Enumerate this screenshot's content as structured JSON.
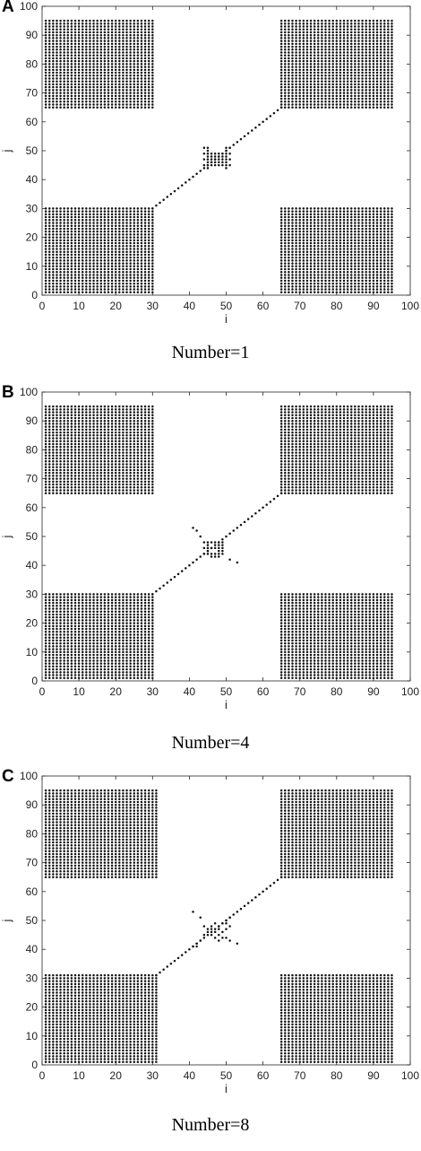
{
  "chart_data": [
    {
      "type": "scatter",
      "panel_label": "A",
      "caption": "Number=1",
      "xlabel": "i",
      "ylabel": "j",
      "xlim": [
        0,
        100
      ],
      "ylim": [
        0,
        100
      ],
      "xticks": [
        0,
        10,
        20,
        30,
        40,
        50,
        60,
        70,
        80,
        90,
        100
      ],
      "yticks": [
        0,
        10,
        20,
        30,
        40,
        50,
        60,
        70,
        80,
        90,
        100
      ],
      "grid": false,
      "blocks": [
        {
          "x": [
            1,
            30
          ],
          "y": [
            1,
            30
          ]
        },
        {
          "x": [
            65,
            95
          ],
          "y": [
            1,
            30
          ]
        },
        {
          "x": [
            1,
            30
          ],
          "y": [
            65,
            95
          ]
        },
        {
          "x": [
            65,
            95
          ],
          "y": [
            65,
            95
          ]
        }
      ],
      "diagonal": {
        "from": [
          30,
          30
        ],
        "to": [
          65,
          65
        ]
      },
      "center_points": [
        [
          45,
          44
        ],
        [
          50,
          44
        ],
        [
          44,
          45
        ],
        [
          45,
          45
        ],
        [
          46,
          45
        ],
        [
          47,
          45
        ],
        [
          48,
          45
        ],
        [
          49,
          45
        ],
        [
          50,
          45
        ],
        [
          51,
          45
        ],
        [
          45,
          46
        ],
        [
          46,
          46
        ],
        [
          47,
          46
        ],
        [
          48,
          46
        ],
        [
          49,
          46
        ],
        [
          50,
          46
        ],
        [
          44,
          47
        ],
        [
          45,
          47
        ],
        [
          46,
          47
        ],
        [
          47,
          47
        ],
        [
          48,
          47
        ],
        [
          49,
          47
        ],
        [
          50,
          47
        ],
        [
          51,
          47
        ],
        [
          45,
          48
        ],
        [
          46,
          48
        ],
        [
          47,
          48
        ],
        [
          48,
          48
        ],
        [
          49,
          48
        ],
        [
          50,
          48
        ],
        [
          44,
          49
        ],
        [
          45,
          49
        ],
        [
          46,
          49
        ],
        [
          47,
          49
        ],
        [
          48,
          49
        ],
        [
          49,
          49
        ],
        [
          50,
          49
        ],
        [
          51,
          49
        ],
        [
          45,
          50
        ],
        [
          50,
          50
        ],
        [
          44,
          51
        ],
        [
          45,
          51
        ],
        [
          50,
          51
        ],
        [
          51,
          51
        ]
      ]
    },
    {
      "type": "scatter",
      "panel_label": "B",
      "caption": "Number=4",
      "xlabel": "i",
      "ylabel": "j",
      "xlim": [
        0,
        100
      ],
      "ylim": [
        0,
        100
      ],
      "xticks": [
        0,
        10,
        20,
        30,
        40,
        50,
        60,
        70,
        80,
        90,
        100
      ],
      "yticks": [
        0,
        10,
        20,
        30,
        40,
        50,
        60,
        70,
        80,
        90,
        100
      ],
      "grid": false,
      "blocks": [
        {
          "x": [
            1,
            30
          ],
          "y": [
            1,
            30
          ]
        },
        {
          "x": [
            65,
            95
          ],
          "y": [
            1,
            30
          ]
        },
        {
          "x": [
            1,
            30
          ],
          "y": [
            65,
            95
          ]
        },
        {
          "x": [
            65,
            95
          ],
          "y": [
            65,
            95
          ]
        }
      ],
      "diagonal": {
        "from": [
          30,
          30
        ],
        "to": [
          65,
          65
        ]
      },
      "center_points": [
        [
          41,
          53
        ],
        [
          42,
          52
        ],
        [
          43,
          50
        ],
        [
          44,
          48
        ],
        [
          45,
          48
        ],
        [
          46,
          48
        ],
        [
          47,
          48
        ],
        [
          48,
          48
        ],
        [
          49,
          48
        ],
        [
          45,
          47
        ],
        [
          48,
          47
        ],
        [
          49,
          47
        ],
        [
          44,
          46
        ],
        [
          45,
          46
        ],
        [
          46,
          46
        ],
        [
          47,
          46
        ],
        [
          48,
          46
        ],
        [
          49,
          46
        ],
        [
          45,
          45
        ],
        [
          48,
          45
        ],
        [
          49,
          45
        ],
        [
          44,
          44
        ],
        [
          45,
          44
        ],
        [
          46,
          44
        ],
        [
          47,
          44
        ],
        [
          48,
          44
        ],
        [
          49,
          44
        ],
        [
          46,
          43
        ],
        [
          47,
          43
        ],
        [
          48,
          43
        ],
        [
          51,
          42
        ],
        [
          53,
          41
        ]
      ]
    },
    {
      "type": "scatter",
      "panel_label": "C",
      "caption": "Number=8",
      "xlabel": "i",
      "ylabel": "j",
      "xlim": [
        0,
        100
      ],
      "ylim": [
        0,
        100
      ],
      "xticks": [
        0,
        10,
        20,
        30,
        40,
        50,
        60,
        70,
        80,
        90,
        100
      ],
      "yticks": [
        0,
        10,
        20,
        30,
        40,
        50,
        60,
        70,
        80,
        90,
        100
      ],
      "grid": false,
      "blocks": [
        {
          "x": [
            1,
            31
          ],
          "y": [
            1,
            31
          ]
        },
        {
          "x": [
            65,
            95
          ],
          "y": [
            1,
            31
          ]
        },
        {
          "x": [
            1,
            31
          ],
          "y": [
            65,
            95
          ]
        },
        {
          "x": [
            65,
            95
          ],
          "y": [
            65,
            95
          ]
        }
      ],
      "diagonal": {
        "from": [
          31,
          31
        ],
        "to": [
          65,
          65
        ]
      },
      "center_points": [
        [
          41,
          53
        ],
        [
          43,
          51
        ],
        [
          41,
          41
        ],
        [
          42,
          42
        ],
        [
          43,
          43
        ],
        [
          42,
          41
        ],
        [
          44,
          48
        ],
        [
          45,
          47
        ],
        [
          46,
          48
        ],
        [
          47,
          49
        ],
        [
          48,
          48
        ],
        [
          49,
          49
        ],
        [
          50,
          50
        ],
        [
          51,
          51
        ],
        [
          45,
          46
        ],
        [
          46,
          45
        ],
        [
          47,
          46
        ],
        [
          48,
          45
        ],
        [
          49,
          46
        ],
        [
          50,
          47
        ],
        [
          51,
          48
        ],
        [
          44,
          45
        ],
        [
          46,
          47
        ],
        [
          48,
          47
        ],
        [
          50,
          49
        ],
        [
          47,
          44
        ],
        [
          49,
          44
        ],
        [
          48,
          43
        ],
        [
          50,
          44
        ],
        [
          51,
          43
        ],
        [
          53,
          42
        ]
      ]
    }
  ]
}
